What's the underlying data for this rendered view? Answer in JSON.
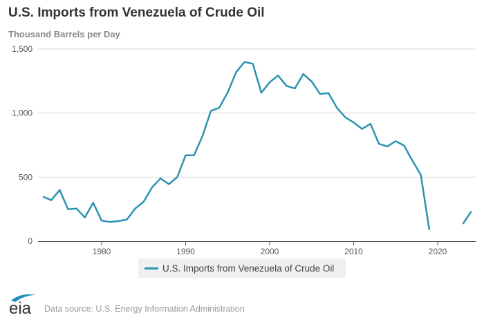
{
  "chart_data": {
    "type": "line",
    "title": "U.S. Imports from Venezuela of Crude Oil",
    "subtitle": "Thousand Barrels per Day",
    "xlabel": "",
    "ylabel": "",
    "xlim": [
      1973,
      2024
    ],
    "ylim": [
      0,
      1500
    ],
    "x_ticks": [
      1980,
      1990,
      2000,
      2010,
      2020
    ],
    "x_tick_labels": [
      "1980",
      "1990",
      "2000",
      "2010",
      "2020"
    ],
    "y_ticks": [
      0,
      500,
      1000,
      1500
    ],
    "y_tick_labels": [
      "0",
      "500",
      "1,000",
      "1,500"
    ],
    "grid": "horizontal",
    "legend_position": "bottom-center",
    "line_color": "#2a93b0",
    "series": [
      {
        "name": "U.S. Imports from Venezuela of Crude Oil",
        "x": [
          1973,
          1974,
          1975,
          1976,
          1977,
          1978,
          1979,
          1980,
          1981,
          1982,
          1983,
          1984,
          1985,
          1986,
          1987,
          1988,
          1989,
          1990,
          1991,
          1992,
          1993,
          1994,
          1995,
          1996,
          1997,
          1998,
          1999,
          2000,
          2001,
          2002,
          2003,
          2004,
          2005,
          2006,
          2007,
          2008,
          2009,
          2010,
          2011,
          2012,
          2013,
          2014,
          2015,
          2016,
          2017,
          2018,
          2019,
          2020,
          2021,
          2022,
          2023,
          2024
        ],
        "values": [
          348,
          320,
          400,
          250,
          255,
          185,
          300,
          160,
          150,
          157,
          168,
          255,
          308,
          420,
          490,
          445,
          500,
          670,
          670,
          820,
          1017,
          1042,
          1161,
          1318,
          1399,
          1385,
          1159,
          1240,
          1294,
          1213,
          1192,
          1305,
          1246,
          1150,
          1156,
          1042,
          967,
          927,
          876,
          916,
          760,
          740,
          781,
          747,
          628,
          517,
          88,
          null,
          null,
          null,
          135,
          232
        ]
      }
    ]
  },
  "footer": {
    "logo_text": "eia",
    "source": "Data source: U.S. Energy Information Administration"
  }
}
